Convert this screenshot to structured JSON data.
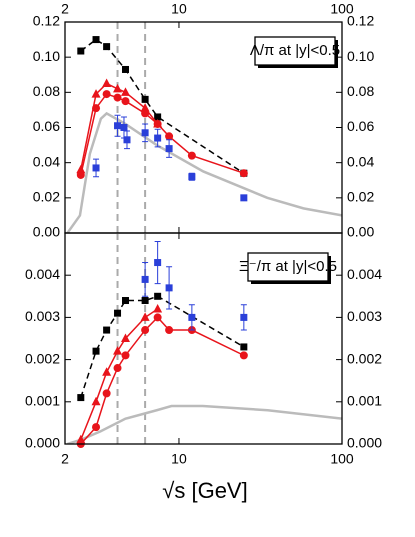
{
  "chart_data": [
    {
      "type": "scatter",
      "annotation": "Λ/π at |y|<0.5",
      "xscale": "log",
      "xlim": [
        2,
        100
      ],
      "xticks": [
        2,
        10,
        100
      ],
      "ylim": [
        0,
        0.12
      ],
      "yticks": [
        {
          "value": 0,
          "label": "0.00"
        },
        {
          "value": 0.02,
          "label": "0.02"
        },
        {
          "value": 0.04,
          "label": "0.04"
        },
        {
          "value": 0.06,
          "label": "0.06"
        },
        {
          "value": 0.08,
          "label": "0.08"
        },
        {
          "value": 0.1,
          "label": "0.10"
        },
        {
          "value": 0.12,
          "label": "0.12"
        }
      ],
      "vlines": [
        4.2,
        6.2
      ],
      "series": [
        {
          "color": "#bbbbbb",
          "marker": "none",
          "line": "solid",
          "x": [
            2.07,
            2.47,
            2.84,
            3.32,
            3.6,
            4.7,
            7.3,
            14.1,
            34.8,
            58,
            100
          ],
          "values": [
            0.0,
            0.01,
            0.045,
            0.065,
            0.068,
            0.062,
            0.05,
            0.035,
            0.02,
            0.014,
            0.01
          ]
        },
        {
          "color": "#000000",
          "marker": "square",
          "line": "dashed",
          "x": [
            2.5,
            3.1,
            3.6,
            4.7,
            6.2,
            7.4,
            25
          ],
          "values": [
            0.1035,
            0.11,
            0.106,
            0.093,
            0.076,
            0.066,
            0.034
          ]
        },
        {
          "color": "#e8141b",
          "marker": "triangle",
          "line": "solid",
          "x": [
            2.5,
            3.1,
            3.6,
            4.2,
            4.7,
            6.2,
            7.4
          ],
          "values": [
            0.036,
            0.079,
            0.085,
            0.082,
            0.08,
            0.071,
            0.062
          ]
        },
        {
          "color": "#e8141b",
          "marker": "circle",
          "line": "solid",
          "x": [
            2.5,
            3.1,
            3.6,
            4.2,
            4.7,
            6.2,
            7.4,
            8.7,
            12,
            25
          ],
          "values": [
            0.033,
            0.071,
            0.079,
            0.077,
            0.075,
            0.068,
            0.062,
            0.055,
            0.044,
            0.034
          ]
        },
        {
          "color": "#2a3fd9",
          "marker": "square",
          "line": "none",
          "x": [
            3.1,
            4.2,
            4.6,
            4.8,
            6.2,
            7.4,
            8.7,
            12,
            25
          ],
          "values": [
            0.037,
            0.061,
            0.06,
            0.053,
            0.057,
            0.054,
            0.048,
            0.032,
            0.02
          ],
          "errors": [
            0.005,
            0.006,
            0.006,
            0.005,
            0.005,
            0.005,
            0.005,
            0.002,
            0.001
          ]
        }
      ]
    },
    {
      "type": "scatter",
      "annotation": "Ξ⁻/π at |y|<0.5",
      "x_label": "√s [GeV]",
      "xscale": "log",
      "xlim": [
        2,
        100
      ],
      "xticks": [
        2,
        10,
        100
      ],
      "ylim": [
        0,
        0.005
      ],
      "yticks": [
        {
          "value": 0,
          "label": "0.000"
        },
        {
          "value": 0.001,
          "label": "0.001"
        },
        {
          "value": 0.002,
          "label": "0.002"
        },
        {
          "value": 0.003,
          "label": "0.003"
        },
        {
          "value": 0.004,
          "label": "0.004"
        }
      ],
      "vlines": [
        4.2,
        6.2
      ],
      "series": [
        {
          "color": "#bbbbbb",
          "marker": "none",
          "line": "solid",
          "x": [
            2.07,
            2.5,
            3.3,
            4.7,
            7.3,
            9,
            14,
            35,
            100
          ],
          "values": [
            0.0,
            0.0001,
            0.0003,
            0.0006,
            0.0008,
            0.0009,
            0.0009,
            0.0008,
            0.0006
          ]
        },
        {
          "color": "#000000",
          "marker": "square",
          "line": "dashed",
          "x": [
            2.5,
            3.1,
            3.6,
            4.2,
            4.7,
            6.2,
            7.4,
            25
          ],
          "values": [
            0.0011,
            0.0022,
            0.0027,
            0.0031,
            0.0034,
            0.0034,
            0.0035,
            0.0023
          ]
        },
        {
          "color": "#e8141b",
          "marker": "triangle",
          "line": "solid",
          "x": [
            2.5,
            3.1,
            3.6,
            4.2,
            4.7,
            6.2,
            7.4
          ],
          "values": [
            0.0001,
            0.001,
            0.0017,
            0.0022,
            0.0025,
            0.003,
            0.0032
          ]
        },
        {
          "color": "#e8141b",
          "marker": "circle",
          "line": "solid",
          "x": [
            2.5,
            3.1,
            3.6,
            4.2,
            4.7,
            6.2,
            7.4,
            8.7,
            12,
            25
          ],
          "values": [
            0.0,
            0.0004,
            0.0012,
            0.0018,
            0.0021,
            0.0027,
            0.003,
            0.0027,
            0.0027,
            0.0021
          ]
        },
        {
          "color": "#2a3fd9",
          "marker": "square",
          "line": "none",
          "x": [
            6.2,
            7.4,
            8.7,
            12,
            25
          ],
          "values": [
            0.0039,
            0.0043,
            0.0037,
            0.003,
            0.003
          ],
          "errors": [
            0.0004,
            0.0005,
            0.0005,
            0.0003,
            0.0003
          ]
        }
      ]
    }
  ]
}
